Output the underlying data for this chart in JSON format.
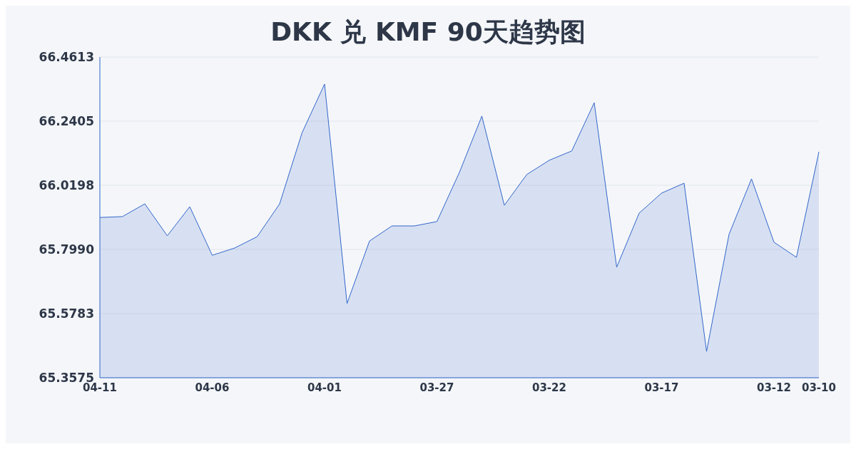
{
  "chart_data": {
    "type": "area",
    "title": "DKK 兑 KMF 90天趋势图",
    "categories": [
      "04-11",
      null,
      null,
      null,
      null,
      "04-06",
      null,
      null,
      null,
      null,
      "04-01",
      null,
      null,
      null,
      null,
      "03-27",
      null,
      null,
      null,
      null,
      "03-22",
      null,
      null,
      null,
      null,
      "03-17",
      null,
      null,
      null,
      null,
      "03-12",
      null,
      "03-10"
    ],
    "series": [
      {
        "color": "#3366cc",
        "values": [
          65.909,
          65.912,
          65.956,
          65.846,
          65.946,
          65.779,
          65.804,
          65.843,
          65.956,
          66.201,
          66.368,
          65.613,
          65.828,
          65.88,
          65.88,
          65.895,
          66.064,
          66.258,
          65.951,
          66.057,
          66.106,
          66.138,
          66.304,
          65.738,
          65.924,
          65.993,
          66.027,
          65.448,
          65.851,
          66.042,
          65.824,
          65.772,
          66.135
        ]
      }
    ],
    "ylim": [
      65.3575,
      66.4613
    ],
    "yticks": [
      65.3575,
      65.5783,
      {
        "value": 65.799,
        "label": "65.7990"
      },
      66.0198,
      66.2405,
      66.4613
    ],
    "grid": "y",
    "marker": "none",
    "line_style": "solid",
    "legend": false
  }
}
